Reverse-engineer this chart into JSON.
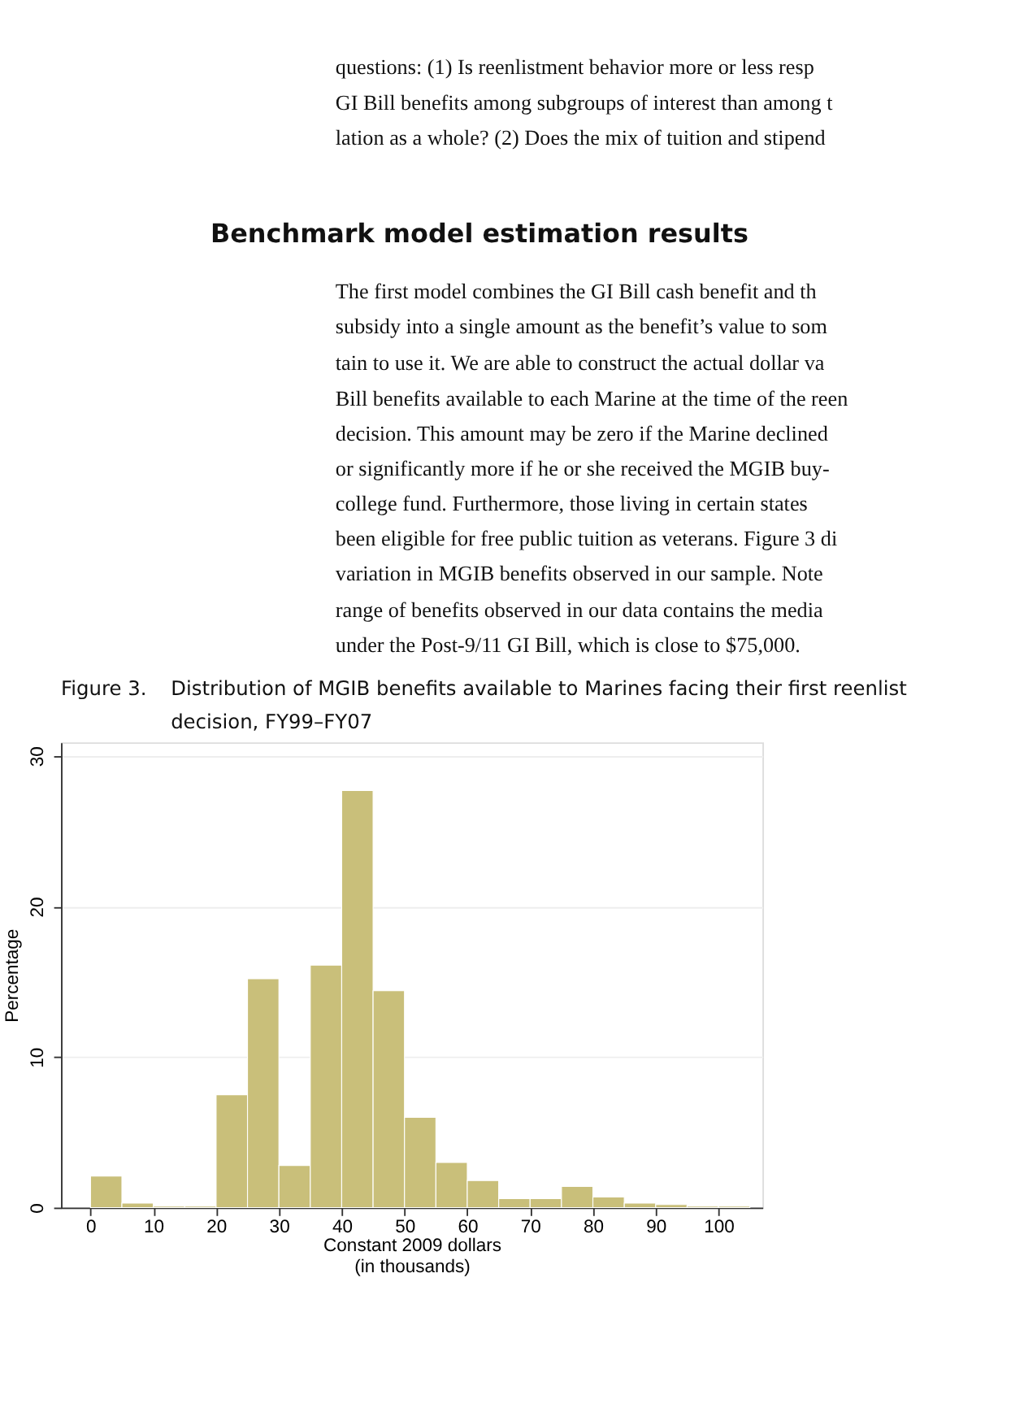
{
  "chart_data": {
    "type": "histogram",
    "title": "Distribution of MGIB benefits available to Marines facing their first reenlist\ndecision, FY99–FY07",
    "annotations": [
      "questions: (1) Is reenlistment behavior more or less resp",
      "GI Bill benefits among subgroups of interest than among t",
      "lation as a whole? (2) Does the mix of tuition and stipend",
      "Benchmark model estimation results",
      "The first model combines the GI Bill cash benefit and th",
      "subsidy into a single amount as the benefit’s value to som",
      "tain to use it. We are able to construct the actual dollar va",
      "Bill benefits available to each Marine at the time of the reen",
      "decision. This amount may be zero if the Marine declined",
      "or significantly more if he or she received the MGIB buy-",
      "college fund. Furthermore, those living in certain states",
      "been eligible for free public tuition as veterans. Figure 3 di",
      "variation in MGIB benefits observed in our sample. Note",
      "range of benefits observed in our data contains the media",
      "under the Post-9/11 GI Bill, which is close to $75,000.",
      "Figure 3."
    ],
    "xlabel": "Constant 2009 dollars\n(in thousands)",
    "ylabel": "Percentage",
    "bins": [
      0,
      5,
      10,
      15,
      20,
      25,
      30,
      35,
      40,
      45,
      50,
      55,
      60,
      65,
      70,
      75,
      80,
      85,
      90,
      95,
      100,
      105
    ],
    "values": [
      2.1,
      0.3,
      0.1,
      0.1,
      7.5,
      15.2,
      2.8,
      16.1,
      27.7,
      14.4,
      6.0,
      3.0,
      1.8,
      0.6,
      0.6,
      1.4,
      0.7,
      0.3,
      0.2,
      0.1,
      0.1
    ],
    "color": "#c9bf7a",
    "xlim": [
      -4.7,
      107
    ],
    "xticks": [
      0,
      10,
      20,
      30,
      40,
      50,
      60,
      70,
      80,
      90,
      100
    ],
    "ylim": [
      0,
      30.9
    ],
    "yticks": [
      0,
      10,
      20,
      30
    ],
    "grid": "y"
  }
}
